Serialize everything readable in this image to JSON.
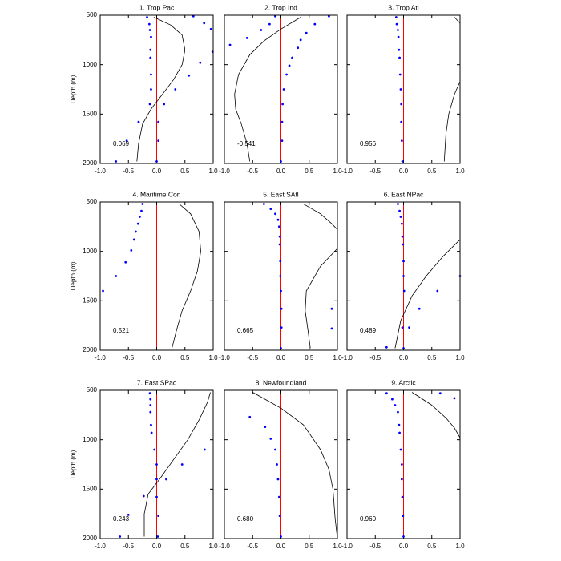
{
  "chart_data": [
    {
      "type": "scatter",
      "title": "1. Trop Pac",
      "ylabel": "Depth (m)",
      "annotation": "0.069",
      "xlim": [
        -1,
        1
      ],
      "xticks": [
        {
          "value": -1,
          "label": "-1.0"
        },
        -0.5,
        {
          "value": 0,
          "label": "0.0"
        },
        0.5,
        {
          "value": 1,
          "label": "1.0"
        }
      ],
      "ylim": [
        500,
        2000
      ],
      "yticks": [
        500,
        1000,
        1500,
        2000
      ],
      "y_inverted": true,
      "zero_line": 0,
      "zero_line_color": "#ff0000",
      "series": [
        {
          "style": "dots",
          "color": "#0000ff",
          "x": [
            -0.17,
            -0.13,
            -0.12,
            -0.1,
            -0.11,
            -0.11,
            -0.1,
            -0.1,
            -0.12,
            0.03,
            0.03,
            0,
            0.65,
            0.84,
            0.96,
            0.99,
            0.77,
            0.57,
            0.33,
            0.13,
            -0.32,
            -0.53,
            -0.72
          ],
          "values": [
            520,
            590,
            650,
            720,
            850,
            930,
            1100,
            1250,
            1400,
            1580,
            1770,
            1980,
            510,
            580,
            640,
            870,
            980,
            1110,
            1250,
            1400,
            1580,
            1770,
            1980
          ]
        },
        {
          "style": "line",
          "color": "#000000",
          "x": [
            -0.05,
            0.25,
            0.45,
            0.5,
            0.45,
            0.3,
            0.1,
            -0.1,
            -0.25,
            -0.32,
            -0.35
          ],
          "values": [
            520,
            600,
            700,
            850,
            1000,
            1150,
            1300,
            1450,
            1600,
            1800,
            1980
          ]
        }
      ]
    },
    {
      "type": "scatter",
      "title": "2. Trop Ind",
      "annotation": "-0.541",
      "xlim": [
        -1,
        1
      ],
      "xticks": [
        {
          "value": -1,
          "label": "-1.0"
        },
        -0.5,
        {
          "value": 0,
          "label": "0.0"
        },
        0.5,
        {
          "value": 1,
          "label": "1.0"
        }
      ],
      "ylim": [
        500,
        2000
      ],
      "yticks": [
        500,
        1000,
        1500,
        2000
      ],
      "y_inverted": true,
      "zero_line": 0,
      "zero_line_color": "#ff0000",
      "series": [
        {
          "style": "dots",
          "color": "#0000ff",
          "x": [
            0.85,
            0.6,
            0.45,
            0.35,
            0.3,
            0.2,
            0.15,
            0.1,
            0.05,
            0.03,
            0.02,
            0.02,
            0,
            -0.1,
            -0.2,
            -0.35,
            -0.6,
            -0.9
          ],
          "values": [
            510,
            590,
            680,
            750,
            830,
            930,
            1010,
            1100,
            1250,
            1400,
            1580,
            1770,
            1980,
            510,
            590,
            650,
            730,
            800
          ]
        },
        {
          "style": "line",
          "color": "#000000",
          "x": [
            0.35,
            0,
            -0.3,
            -0.55,
            -0.75,
            -0.82,
            -0.8,
            -0.7,
            -0.6,
            -0.55
          ],
          "values": [
            520,
            640,
            760,
            900,
            1100,
            1300,
            1450,
            1600,
            1800,
            1980
          ]
        }
      ]
    },
    {
      "type": "scatter",
      "title": "3. Trop Atl",
      "annotation": "0.956",
      "xlim": [
        -1,
        1
      ],
      "xticks": [
        {
          "value": -1,
          "label": "-1.0"
        },
        -0.5,
        {
          "value": 0,
          "label": "0.0"
        },
        0.5,
        {
          "value": 1,
          "label": "1.0"
        }
      ],
      "ylim": [
        500,
        2000
      ],
      "yticks": [
        500,
        1000,
        1500,
        2000
      ],
      "y_inverted": true,
      "zero_line": 0,
      "zero_line_color": "#ff0000",
      "series": [
        {
          "style": "dots",
          "color": "#0000ff",
          "x": [
            -0.13,
            -0.12,
            -0.1,
            -0.09,
            -0.08,
            -0.07,
            -0.06,
            -0.05,
            -0.04,
            -0.04,
            -0.03,
            -0.02
          ],
          "values": [
            520,
            590,
            650,
            720,
            850,
            930,
            1100,
            1250,
            1400,
            1580,
            1770,
            1980
          ]
        },
        {
          "style": "line",
          "color": "#000000",
          "x": [
            0.9,
            1,
            null,
            1,
            0.9,
            0.8,
            0.75,
            0.72
          ],
          "values": [
            520,
            580,
            null,
            1170,
            1300,
            1500,
            1700,
            1980
          ]
        }
      ]
    },
    {
      "type": "scatter",
      "title": "4. Maritime Con",
      "ylabel": "Depth (m)",
      "annotation": "0.521",
      "xlim": [
        -1,
        1
      ],
      "xticks": [
        {
          "value": -1,
          "label": "-1.0"
        },
        -0.5,
        {
          "value": 0,
          "label": "0.0"
        },
        0.5,
        {
          "value": 1,
          "label": "1.0"
        }
      ],
      "ylim": [
        500,
        2000
      ],
      "yticks": [
        500,
        1000,
        1500,
        2000
      ],
      "y_inverted": true,
      "zero_line": 0,
      "zero_line_color": "#ff0000",
      "series": [
        {
          "style": "dots",
          "color": "#0000ff",
          "x": [
            -0.25,
            -0.27,
            -0.3,
            -0.33,
            -0.37,
            -0.4,
            -0.45,
            -0.55,
            -0.72,
            -0.95
          ],
          "values": [
            520,
            590,
            650,
            720,
            800,
            880,
            990,
            1110,
            1250,
            1400
          ]
        },
        {
          "style": "line",
          "color": "#000000",
          "x": [
            0.4,
            0.6,
            0.75,
            0.78,
            0.72,
            0.6,
            0.45,
            0.35,
            0.27
          ],
          "values": [
            520,
            620,
            800,
            1000,
            1200,
            1400,
            1600,
            1800,
            1980
          ]
        }
      ]
    },
    {
      "type": "scatter",
      "title": "5. East SAtl",
      "annotation": "0.665",
      "xlim": [
        -1,
        1
      ],
      "xticks": [
        {
          "value": -1,
          "label": "-1.0"
        },
        -0.5,
        {
          "value": 0,
          "label": "0.0"
        },
        0.5,
        {
          "value": 1,
          "label": "1.0"
        }
      ],
      "ylim": [
        500,
        2000
      ],
      "yticks": [
        500,
        1000,
        1500,
        2000
      ],
      "y_inverted": true,
      "zero_line": 0,
      "zero_line_color": "#ff0000",
      "series": [
        {
          "style": "dots",
          "color": "#0000ff",
          "x": [
            -0.3,
            -0.18,
            -0.1,
            -0.05,
            -0.03,
            -0.02,
            -0.02,
            -0.01,
            -0.01,
            0,
            0.01,
            0.01,
            0,
            0.9,
            0.9
          ],
          "values": [
            520,
            570,
            620,
            680,
            750,
            850,
            930,
            1100,
            1250,
            1400,
            1580,
            1770,
            1980,
            1580,
            1780
          ]
        },
        {
          "style": "line",
          "color": "#000000",
          "x": [
            0.4,
            0.7,
            0.9,
            1,
            null,
            1,
            0.7,
            0.45,
            0.43,
            0.48,
            0.52
          ],
          "values": [
            520,
            620,
            720,
            780,
            null,
            970,
            1150,
            1400,
            1600,
            1800,
            1980
          ]
        }
      ]
    },
    {
      "type": "scatter",
      "title": "6. East NPac",
      "annotation": "0.489",
      "xlim": [
        -1,
        1
      ],
      "xticks": [
        {
          "value": -1,
          "label": "-1.0"
        },
        -0.5,
        {
          "value": 0,
          "label": "0.0"
        },
        0.5,
        {
          "value": 1,
          "label": "1.0"
        }
      ],
      "ylim": [
        500,
        2000
      ],
      "yticks": [
        500,
        1000,
        1500,
        2000
      ],
      "y_inverted": true,
      "zero_line": 0,
      "zero_line_color": "#ff0000",
      "series": [
        {
          "style": "dots",
          "color": "#0000ff",
          "x": [
            -0.1,
            -0.07,
            -0.05,
            -0.03,
            -0.02,
            -0.01,
            0,
            0,
            0.01,
            0.28,
            0.6,
            1,
            0.1,
            -0.02,
            0,
            -0.3
          ],
          "values": [
            520,
            590,
            650,
            720,
            850,
            930,
            1100,
            1250,
            1400,
            1580,
            1400,
            1250,
            1770,
            1770,
            1980,
            1970
          ]
        },
        {
          "style": "line",
          "color": "#000000",
          "x": [
            1,
            0.7,
            0.4,
            0.15,
            -0.05,
            -0.15
          ],
          "values": [
            880,
            1050,
            1250,
            1450,
            1700,
            1980
          ]
        }
      ]
    },
    {
      "type": "scatter",
      "title": "7. East SPac",
      "ylabel": "Depth (m)",
      "annotation": "0.243",
      "xlim": [
        -1,
        1
      ],
      "xticks": [
        {
          "value": -1,
          "label": "-1.0"
        },
        -0.5,
        {
          "value": 0,
          "label": "0.0"
        },
        0.5,
        {
          "value": 1,
          "label": "1.0"
        }
      ],
      "ylim": [
        500,
        2000
      ],
      "yticks": [
        500,
        1000,
        1500,
        2000
      ],
      "y_inverted": true,
      "zero_line": 0,
      "zero_line_color": "#ff0000",
      "series": [
        {
          "style": "dots",
          "color": "#0000ff",
          "x": [
            -0.12,
            -0.11,
            -0.11,
            -0.11,
            -0.1,
            -0.09,
            -0.04,
            0,
            0,
            0,
            0.03,
            0.02,
            0.85,
            0.45,
            0.17,
            -0.23,
            -0.5,
            -0.65
          ],
          "values": [
            530,
            590,
            650,
            720,
            850,
            930,
            1100,
            1250,
            1400,
            1580,
            1770,
            1980,
            1100,
            1250,
            1400,
            1570,
            1760,
            1980
          ]
        },
        {
          "style": "line",
          "color": "#000000",
          "x": [
            0.95,
            0.9,
            0.75,
            0.55,
            0.3,
            0.05,
            -0.15,
            -0.22,
            -0.22
          ],
          "values": [
            520,
            620,
            800,
            1000,
            1200,
            1400,
            1550,
            1750,
            1980
          ]
        }
      ]
    },
    {
      "type": "scatter",
      "title": "8. Newfoundland",
      "annotation": "0.680",
      "xlim": [
        -1,
        1
      ],
      "xticks": [
        {
          "value": -1,
          "label": "-1.0"
        },
        -0.5,
        {
          "value": 0,
          "label": "0.0"
        },
        0.5,
        {
          "value": 1,
          "label": "1.0"
        }
      ],
      "ylim": [
        500,
        2000
      ],
      "yticks": [
        500,
        1000,
        1500,
        2000
      ],
      "y_inverted": true,
      "zero_line": 0,
      "zero_line_color": "#ff0000",
      "series": [
        {
          "style": "dots",
          "color": "#0000ff",
          "x": [
            -0.55,
            -0.28,
            -0.18,
            -0.1,
            -0.07,
            -0.05,
            -0.03,
            -0.02,
            0
          ],
          "values": [
            770,
            870,
            990,
            1100,
            1250,
            1400,
            1580,
            1770,
            1980
          ]
        },
        {
          "style": "line",
          "color": "#000000",
          "x": [
            -0.5,
            0,
            0.4,
            0.7,
            0.85,
            0.92,
            0.96,
            1
          ],
          "values": [
            520,
            680,
            850,
            1100,
            1300,
            1500,
            1800,
            2000
          ]
        }
      ]
    },
    {
      "type": "scatter",
      "title": "9. Arctic",
      "annotation": "0.960",
      "xlim": [
        -1,
        1
      ],
      "xticks": [
        {
          "value": -1,
          "label": "-1.0"
        },
        -0.5,
        {
          "value": 0,
          "label": "0.0"
        },
        0.5,
        {
          "value": 1,
          "label": "1.0"
        }
      ],
      "ylim": [
        500,
        2000
      ],
      "yticks": [
        500,
        1000,
        1500,
        2000
      ],
      "y_inverted": true,
      "zero_line": 0,
      "zero_line_color": "#ff0000",
      "series": [
        {
          "style": "dots",
          "color": "#0000ff",
          "x": [
            -0.3,
            -0.2,
            -0.15,
            -0.1,
            -0.08,
            -0.07,
            -0.05,
            -0.03,
            -0.03,
            -0.02,
            -0.01,
            0,
            0.65,
            0.9
          ],
          "values": [
            530,
            590,
            650,
            720,
            850,
            930,
            1100,
            1250,
            1400,
            1580,
            1770,
            1980,
            530,
            580
          ]
        },
        {
          "style": "line",
          "color": "#000000",
          "x": [
            0.15,
            0.5,
            0.75,
            0.9,
            1
          ],
          "values": [
            520,
            650,
            780,
            880,
            980
          ]
        }
      ]
    }
  ]
}
